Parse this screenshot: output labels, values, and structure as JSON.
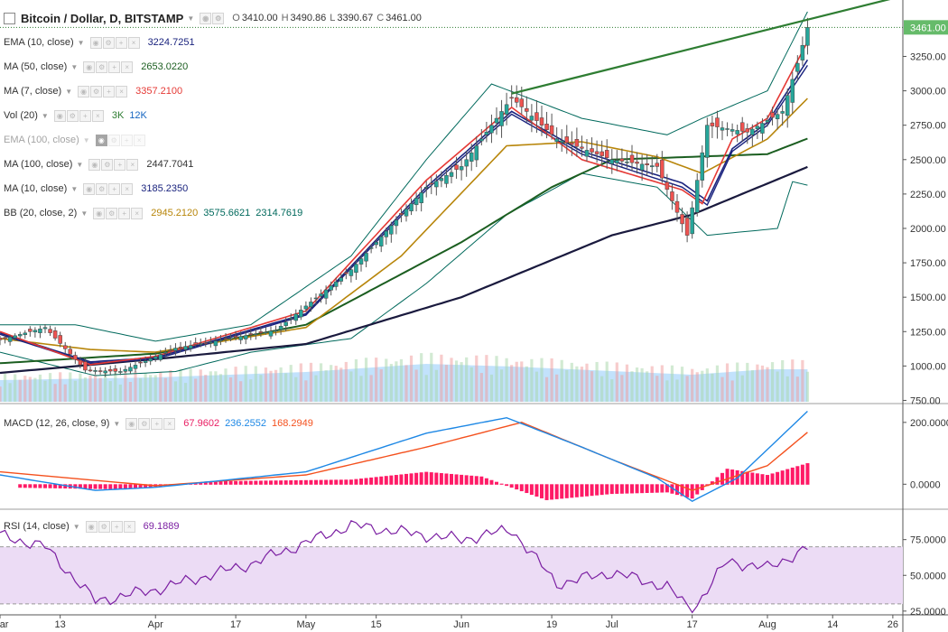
{
  "header": {
    "symbol": "Bitcoin / Dollar, D, BITSTAMP",
    "open_label": "O",
    "open": "3410.00",
    "high_label": "H",
    "high": "3490.86",
    "low_label": "L",
    "low": "3390.67",
    "close_label": "C",
    "close": "3461.00"
  },
  "indicators": [
    {
      "label": "EMA (10, close)",
      "values": [
        {
          "text": "3224.7251",
          "color": "#1a237e"
        }
      ],
      "dim": false
    },
    {
      "label": "MA (50, close)",
      "values": [
        {
          "text": "2653.0220",
          "color": "#1b5e20"
        }
      ],
      "dim": false
    },
    {
      "label": "MA (7, close)",
      "values": [
        {
          "text": "3357.2100",
          "color": "#e53935"
        }
      ],
      "dim": false
    },
    {
      "label": "Vol (20)",
      "values": [
        {
          "text": "3K",
          "color": "#2e7d32"
        },
        {
          "text": "12K",
          "color": "#1565c0"
        }
      ],
      "dim": false
    },
    {
      "label": "EMA (100, close)",
      "values": [],
      "dim": true
    },
    {
      "label": "MA (100, close)",
      "values": [
        {
          "text": "2447.7041",
          "color": "#333333"
        }
      ],
      "dim": false
    },
    {
      "label": "MA (10, close)",
      "values": [
        {
          "text": "3185.2350",
          "color": "#1a237e"
        }
      ],
      "dim": false
    },
    {
      "label": "BB (20, close, 2)",
      "values": [
        {
          "text": "2945.2120",
          "color": "#b8860b"
        },
        {
          "text": "3575.6621",
          "color": "#00695c"
        },
        {
          "text": "2314.7619",
          "color": "#00695c"
        }
      ],
      "dim": false
    }
  ],
  "macd_panel": {
    "label": "MACD (12, 26, close, 9)",
    "values": [
      {
        "text": "67.9602",
        "color": "#e91e63"
      },
      {
        "text": "236.2552",
        "color": "#1e88e5"
      },
      {
        "text": "168.2949",
        "color": "#f4511e"
      }
    ]
  },
  "rsi_panel": {
    "label": "RSI (14, close)",
    "values": [
      {
        "text": "69.1889",
        "color": "#7b1fa2"
      }
    ]
  },
  "colors": {
    "up": "#26a69a",
    "down": "#ef5350",
    "trendline": "#2e7d32",
    "macd_line": "#1e88e5",
    "signal_line": "#f4511e",
    "macd_hist": "#ff1a66",
    "rsi_line": "#7b1fa2",
    "rsi_band": "#ecdcf5",
    "volume_ma": "#90caf9"
  },
  "chart_data": {
    "type": "candlestick",
    "price_axis": {
      "ylim": [
        740,
        3660
      ],
      "ticks": [
        {
          "v": 3250,
          "t": "3250.00"
        },
        {
          "v": 3000,
          "t": "3000.00"
        },
        {
          "v": 2750,
          "t": "2750.00"
        },
        {
          "v": 2500,
          "t": "2500.00"
        },
        {
          "v": 2250,
          "t": "2250.00"
        },
        {
          "v": 2000,
          "t": "2000.00"
        },
        {
          "v": 1750,
          "t": "1750.00"
        },
        {
          "v": 1500,
          "t": "1500.00"
        },
        {
          "v": 1250,
          "t": "1250.00"
        },
        {
          "v": 1000,
          "t": "1000.00"
        },
        {
          "v": 750,
          "t": "750.00"
        }
      ],
      "last_price": "3461.00"
    },
    "time_axis": {
      "range": [
        "2017-03-01",
        "2017-08-28"
      ],
      "labels": [
        {
          "date": "2017-03-01",
          "t": "Mar"
        },
        {
          "date": "2017-03-13",
          "t": "13"
        },
        {
          "date": "2017-04-01",
          "t": "Apr"
        },
        {
          "date": "2017-04-17",
          "t": "17"
        },
        {
          "date": "2017-05-01",
          "t": "May"
        },
        {
          "date": "2017-05-15",
          "t": "15"
        },
        {
          "date": "2017-06-01",
          "t": "Jun"
        },
        {
          "date": "2017-06-19",
          "t": "19"
        },
        {
          "date": "2017-07-01",
          "t": "Jul"
        },
        {
          "date": "2017-07-17",
          "t": "17"
        },
        {
          "date": "2017-08-01",
          "t": "Aug"
        },
        {
          "date": "2017-08-14",
          "t": "14"
        },
        {
          "date": "2017-08-26",
          "t": "26"
        }
      ]
    },
    "series": [
      {
        "name": "MA (100, close)",
        "color": "#1a1a3e",
        "points": [
          [
            "2017-03-01",
            950
          ],
          [
            "2017-04-01",
            1050
          ],
          [
            "2017-05-01",
            1160
          ],
          [
            "2017-06-01",
            1500
          ],
          [
            "2017-07-01",
            1950
          ],
          [
            "2017-07-17",
            2100
          ],
          [
            "2017-08-09",
            2447
          ]
        ]
      },
      {
        "name": "MA (50, close)",
        "color": "#1b5e20",
        "points": [
          [
            "2017-03-01",
            1020
          ],
          [
            "2017-04-01",
            1090
          ],
          [
            "2017-05-01",
            1300
          ],
          [
            "2017-06-01",
            1900
          ],
          [
            "2017-06-19",
            2300
          ],
          [
            "2017-07-01",
            2500
          ],
          [
            "2017-07-17",
            2520
          ],
          [
            "2017-08-01",
            2540
          ],
          [
            "2017-08-09",
            2653
          ]
        ]
      },
      {
        "name": "BB basis",
        "color": "#b8860b",
        "points": [
          [
            "2017-03-01",
            1200
          ],
          [
            "2017-03-19",
            1120
          ],
          [
            "2017-04-01",
            1100
          ],
          [
            "2017-05-01",
            1280
          ],
          [
            "2017-05-20",
            1800
          ],
          [
            "2017-06-10",
            2600
          ],
          [
            "2017-06-25",
            2630
          ],
          [
            "2017-07-10",
            2520
          ],
          [
            "2017-07-19",
            2400
          ],
          [
            "2017-08-01",
            2650
          ],
          [
            "2017-08-09",
            2945
          ]
        ]
      },
      {
        "name": "BB upper",
        "color": "#00695c",
        "points": [
          [
            "2017-03-01",
            1300
          ],
          [
            "2017-03-16",
            1300
          ],
          [
            "2017-04-01",
            1180
          ],
          [
            "2017-04-20",
            1300
          ],
          [
            "2017-05-10",
            1800
          ],
          [
            "2017-05-25",
            2500
          ],
          [
            "2017-06-07",
            3050
          ],
          [
            "2017-06-25",
            2800
          ],
          [
            "2017-07-12",
            2680
          ],
          [
            "2017-07-19",
            2800
          ],
          [
            "2017-08-01",
            3000
          ],
          [
            "2017-08-09",
            3575
          ]
        ]
      },
      {
        "name": "BB lower",
        "color": "#00695c",
        "points": [
          [
            "2017-03-01",
            1100
          ],
          [
            "2017-03-20",
            930
          ],
          [
            "2017-04-05",
            960
          ],
          [
            "2017-04-20",
            1100
          ],
          [
            "2017-05-10",
            1200
          ],
          [
            "2017-05-25",
            1600
          ],
          [
            "2017-06-10",
            2100
          ],
          [
            "2017-06-25",
            2400
          ],
          [
            "2017-07-10",
            2300
          ],
          [
            "2017-07-20",
            1950
          ],
          [
            "2017-08-03",
            2000
          ],
          [
            "2017-08-06",
            2340
          ],
          [
            "2017-08-09",
            2314
          ]
        ]
      },
      {
        "name": "EMA (10, close)",
        "color": "#1a237e",
        "points": [
          [
            "2017-03-01",
            1240
          ],
          [
            "2017-03-19",
            1030
          ],
          [
            "2017-04-01",
            1060
          ],
          [
            "2017-05-01",
            1380
          ],
          [
            "2017-05-25",
            2300
          ],
          [
            "2017-06-11",
            2850
          ],
          [
            "2017-06-25",
            2560
          ],
          [
            "2017-07-15",
            2330
          ],
          [
            "2017-07-20",
            2200
          ],
          [
            "2017-07-25",
            2580
          ],
          [
            "2017-08-01",
            2770
          ],
          [
            "2017-08-09",
            3225
          ]
        ]
      },
      {
        "name": "MA (10, close)",
        "color": "#1a237e",
        "points": [
          [
            "2017-03-01",
            1230
          ],
          [
            "2017-03-19",
            1020
          ],
          [
            "2017-04-01",
            1050
          ],
          [
            "2017-05-01",
            1370
          ],
          [
            "2017-05-25",
            2280
          ],
          [
            "2017-06-11",
            2830
          ],
          [
            "2017-06-25",
            2540
          ],
          [
            "2017-07-15",
            2300
          ],
          [
            "2017-07-20",
            2170
          ],
          [
            "2017-07-25",
            2560
          ],
          [
            "2017-08-01",
            2750
          ],
          [
            "2017-08-09",
            3185
          ]
        ]
      },
      {
        "name": "MA (7, close)",
        "color": "#e53935",
        "points": [
          [
            "2017-03-01",
            1250
          ],
          [
            "2017-03-19",
            1010
          ],
          [
            "2017-04-01",
            1070
          ],
          [
            "2017-05-01",
            1400
          ],
          [
            "2017-05-25",
            2350
          ],
          [
            "2017-06-11",
            2880
          ],
          [
            "2017-06-25",
            2500
          ],
          [
            "2017-07-15",
            2280
          ],
          [
            "2017-07-19",
            2180
          ],
          [
            "2017-07-25",
            2650
          ],
          [
            "2017-08-01",
            2800
          ],
          [
            "2017-08-09",
            3357
          ]
        ]
      },
      {
        "name": "trendline-upper",
        "color": "#2e7d32",
        "points": [
          [
            "2017-06-11",
            2980
          ],
          [
            "2017-08-28",
            3690
          ]
        ]
      },
      {
        "name": "price",
        "color": "#26a69a",
        "points": [
          [
            "2017-03-01",
            1190
          ],
          [
            "2017-03-10",
            1280
          ],
          [
            "2017-03-18",
            970
          ],
          [
            "2017-03-25",
            960
          ],
          [
            "2017-04-05",
            1130
          ],
          [
            "2017-04-25",
            1260
          ],
          [
            "2017-05-10",
            1700
          ],
          [
            "2017-05-25",
            2300
          ],
          [
            "2017-06-01",
            2450
          ],
          [
            "2017-06-11",
            2950
          ],
          [
            "2017-06-20",
            2650
          ],
          [
            "2017-07-01",
            2500
          ],
          [
            "2017-07-10",
            2450
          ],
          [
            "2017-07-16",
            1950
          ],
          [
            "2017-07-20",
            2750
          ],
          [
            "2017-07-28",
            2700
          ],
          [
            "2017-08-04",
            2850
          ],
          [
            "2017-08-07",
            3200
          ],
          [
            "2017-08-09",
            3461
          ]
        ]
      },
      {
        "name": "volume",
        "color": "#90caf9",
        "points": [
          [
            "2017-03-01",
            8
          ],
          [
            "2017-04-01",
            9
          ],
          [
            "2017-05-01",
            11
          ],
          [
            "2017-05-25",
            14
          ],
          [
            "2017-06-11",
            13
          ],
          [
            "2017-07-17",
            10
          ],
          [
            "2017-08-01",
            12
          ],
          [
            "2017-08-09",
            12
          ]
        ]
      }
    ],
    "macd": {
      "ylim": [
        -75,
        255
      ],
      "ticks": [
        {
          "v": 200,
          "t": "200.0000"
        },
        {
          "v": 0,
          "t": "0.0000"
        }
      ],
      "macd": [
        [
          "2017-03-01",
          30
        ],
        [
          "2017-03-20",
          -20
        ],
        [
          "2017-04-01",
          -10
        ],
        [
          "2017-05-01",
          40
        ],
        [
          "2017-05-25",
          165
        ],
        [
          "2017-06-10",
          215
        ],
        [
          "2017-06-25",
          120
        ],
        [
          "2017-07-10",
          20
        ],
        [
          "2017-07-17",
          -55
        ],
        [
          "2017-07-26",
          20
        ],
        [
          "2017-08-09",
          236
        ]
      ],
      "signal": [
        [
          "2017-03-01",
          40
        ],
        [
          "2017-04-01",
          -5
        ],
        [
          "2017-05-01",
          30
        ],
        [
          "2017-05-25",
          120
        ],
        [
          "2017-06-13",
          200
        ],
        [
          "2017-07-01",
          80
        ],
        [
          "2017-07-17",
          -20
        ],
        [
          "2017-08-01",
          60
        ],
        [
          "2017-08-09",
          168
        ]
      ],
      "hist": [
        [
          "2017-03-05",
          -10
        ],
        [
          "2017-03-25",
          -15
        ],
        [
          "2017-04-15",
          10
        ],
        [
          "2017-05-10",
          15
        ],
        [
          "2017-05-25",
          40
        ],
        [
          "2017-06-05",
          25
        ],
        [
          "2017-06-18",
          -50
        ],
        [
          "2017-07-01",
          -30
        ],
        [
          "2017-07-12",
          -25
        ],
        [
          "2017-07-17",
          -45
        ],
        [
          "2017-07-24",
          50
        ],
        [
          "2017-08-01",
          30
        ],
        [
          "2017-08-09",
          68
        ]
      ]
    },
    "rsi": {
      "ylim": [
        23,
        95
      ],
      "ticks": [
        {
          "v": 75,
          "t": "75.0000"
        },
        {
          "v": 50,
          "t": "50.0000"
        },
        {
          "v": 25,
          "t": "25.0000"
        }
      ],
      "band": [
        30,
        70
      ],
      "points": [
        [
          "2017-03-01",
          78
        ],
        [
          "2017-03-10",
          70
        ],
        [
          "2017-03-20",
          32
        ],
        [
          "2017-04-01",
          40
        ],
        [
          "2017-04-20",
          58
        ],
        [
          "2017-05-10",
          85
        ],
        [
          "2017-05-25",
          78
        ],
        [
          "2017-06-01",
          75
        ],
        [
          "2017-06-11",
          82
        ],
        [
          "2017-06-20",
          44
        ],
        [
          "2017-07-01",
          52
        ],
        [
          "2017-07-12",
          42
        ],
        [
          "2017-07-17",
          25
        ],
        [
          "2017-07-24",
          60
        ],
        [
          "2017-08-01",
          55
        ],
        [
          "2017-08-09",
          69
        ]
      ]
    }
  }
}
